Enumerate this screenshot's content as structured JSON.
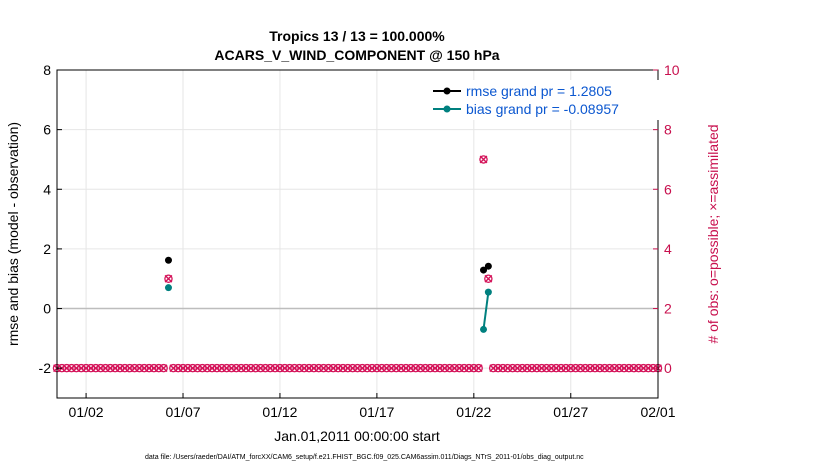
{
  "chart_data": {
    "type": "scatter",
    "title_line1": "Tropics 13 / 13 = 100.000%",
    "title_line2": "ACARS_V_WIND_COMPONENT @ 150 hPa",
    "xlabel": "Jan.01,2011 00:00:00 start",
    "ylabel_left": "rmse and bias (model - observation)",
    "ylabel_right": "# of obs: o=possible; ×=assimilated",
    "footer": "data file: /Users/raeder/DAI/ATM_forcXX/CAM6_setup/f.e21.FHIST_BGC.f09_025.CAM6assim.011/Diags_NTrS_2011-01/obs_diag_output.nc",
    "xlim": [
      0.5,
      31.5
    ],
    "ylim_left": [
      -3,
      8
    ],
    "ylim_right": [
      -1,
      10
    ],
    "x_ticks": [
      {
        "x": 2,
        "label": "01/02"
      },
      {
        "x": 7,
        "label": "01/07"
      },
      {
        "x": 12,
        "label": "01/12"
      },
      {
        "x": 17,
        "label": "01/17"
      },
      {
        "x": 22,
        "label": "01/22"
      },
      {
        "x": 27,
        "label": "01/27"
      },
      {
        "x": 32,
        "label": "02/01"
      }
    ],
    "y_ticks_left": [
      -2,
      0,
      2,
      4,
      6,
      8
    ],
    "y_ticks_right": [
      0,
      2,
      4,
      6,
      8,
      10
    ],
    "grid": true,
    "zero_line": 0,
    "legend_position": "top-right",
    "colors": {
      "rmse": "#000000",
      "bias": "#00807f",
      "obs": "#d4145a",
      "right_axis": "#c8104e",
      "legend_text": "#0b57d0",
      "grid": "#e6e6e6",
      "zero_line": "#bdbdbd"
    },
    "series": [
      {
        "name": "rmse grand pr = 1.2805",
        "color_key": "rmse",
        "marker": "circle",
        "axis": "left",
        "points": [
          [
            6.25,
            1.62
          ],
          [
            22.5,
            1.29
          ],
          [
            22.75,
            1.42
          ]
        ],
        "line_segments": [
          [
            [
              22.5,
              1.29
            ],
            [
              22.75,
              1.42
            ]
          ]
        ]
      },
      {
        "name": "bias grand pr = -0.08957",
        "color_key": "bias",
        "marker": "circle",
        "axis": "left",
        "points": [
          [
            6.25,
            0.7
          ],
          [
            22.5,
            -0.7
          ],
          [
            22.75,
            0.55
          ]
        ],
        "line_segments": [
          [
            [
              22.5,
              -0.7
            ],
            [
              22.75,
              0.55
            ]
          ]
        ]
      }
    ],
    "obs_series": {
      "axis": "right",
      "color_key": "obs",
      "nonzero_points": [
        [
          6.25,
          3
        ],
        [
          22.5,
          7
        ],
        [
          22.75,
          3
        ]
      ],
      "zero_ranges": [
        [
          0.5,
          6.0
        ],
        [
          6.5,
          22.25
        ],
        [
          23.0,
          31.5
        ]
      ],
      "zero_step": 0.25
    }
  }
}
